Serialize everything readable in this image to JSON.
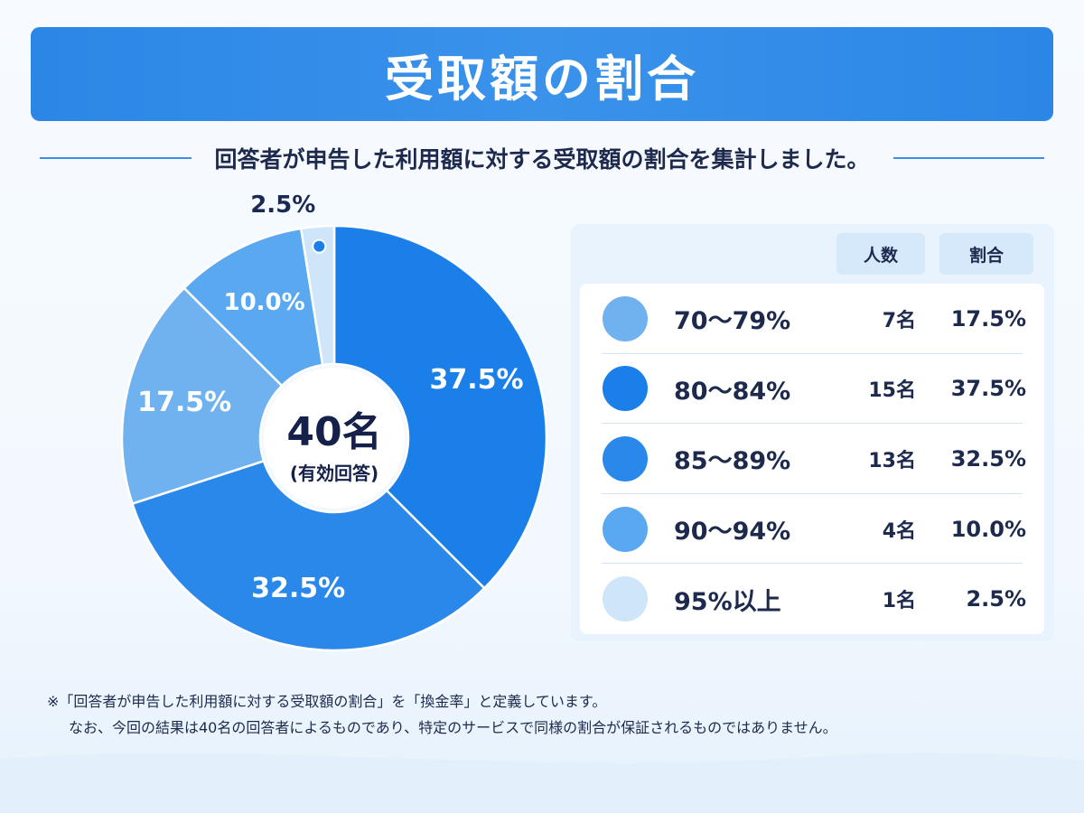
{
  "title": "受取額の割合",
  "subtitle": "回答者が申告した利用額に対する受取額の割合を集計しました。",
  "center": {
    "value": "40名",
    "caption": "(有効回答)"
  },
  "legend": {
    "count_header": "人数",
    "ratio_header": "割合"
  },
  "chart_data": {
    "type": "pie",
    "title": "受取額の割合",
    "total": 40,
    "categories": [
      "70〜79%",
      "80〜84%",
      "85〜89%",
      "90〜94%",
      "95%以上"
    ],
    "counts": [
      7,
      15,
      13,
      4,
      1
    ],
    "values": [
      17.5,
      37.5,
      32.5,
      10.0,
      2.5
    ],
    "count_labels": [
      "7名",
      "15名",
      "13名",
      "4名",
      "1名"
    ],
    "value_labels": [
      "17.5%",
      "37.5%",
      "32.5%",
      "10.0%",
      "2.5%"
    ],
    "slice_order_clockwise_from_top": [
      "80〜84%",
      "85〜89%",
      "70〜79%",
      "90〜94%",
      "95%以上"
    ],
    "colors": [
      "#6fb2ef",
      "#1a7fe9",
      "#2a88ea",
      "#5aa8f0",
      "#cfe5fa"
    ],
    "donut": true,
    "legend_placement": "right"
  },
  "footnote": {
    "line1": "※「回答者が申告した利用額に対する受取額の割合」を「換金率」と定義しています。",
    "line2": "なお、今回の結果は40名の回答者によるものであり、特定のサービスで同様の割合が保証されるものではありません。"
  }
}
